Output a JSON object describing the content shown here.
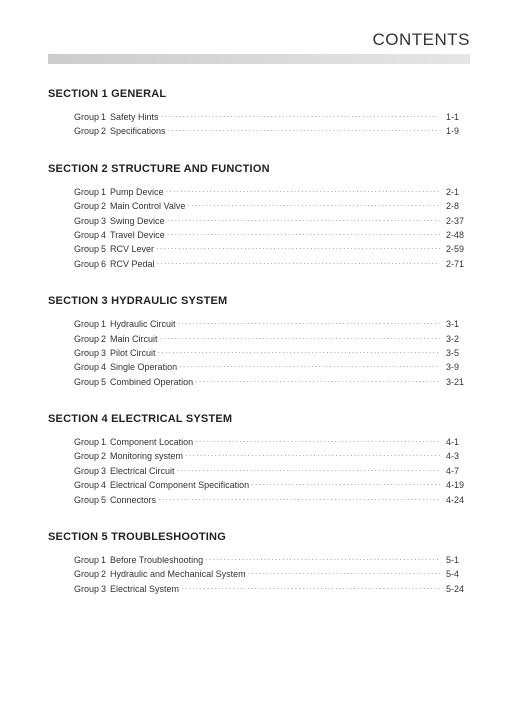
{
  "header": {
    "title": "CONTENTS"
  },
  "sections": [
    {
      "title": "SECTION 1  GENERAL",
      "groups": [
        {
          "label": "Group",
          "num": "1",
          "topic": "Safety Hints",
          "page": "1-1"
        },
        {
          "label": "Group",
          "num": "2",
          "topic": "Specifications",
          "page": "1-9"
        }
      ]
    },
    {
      "title": "SECTION 2  STRUCTURE AND FUNCTION",
      "groups": [
        {
          "label": "Group",
          "num": "1",
          "topic": "Pump Device",
          "page": "2-1"
        },
        {
          "label": "Group",
          "num": "2",
          "topic": "Main Control Valve",
          "page": "2-8"
        },
        {
          "label": "Group",
          "num": "3",
          "topic": "Swing Device",
          "page": "2-37"
        },
        {
          "label": "Group",
          "num": "4",
          "topic": "Travel Device",
          "page": "2-48"
        },
        {
          "label": "Group",
          "num": "5",
          "topic": "RCV Lever",
          "page": "2-59"
        },
        {
          "label": "Group",
          "num": "6",
          "topic": "RCV Pedal",
          "page": "2-71"
        }
      ]
    },
    {
      "title": "SECTION 3  HYDRAULIC SYSTEM",
      "groups": [
        {
          "label": "Group",
          "num": "1",
          "topic": "Hydraulic Circuit",
          "page": "3-1"
        },
        {
          "label": "Group",
          "num": "2",
          "topic": "Main Circuit",
          "page": "3-2"
        },
        {
          "label": "Group",
          "num": "3",
          "topic": "Pilot Circuit",
          "page": "3-5"
        },
        {
          "label": "Group",
          "num": "4",
          "topic": "Single Operation",
          "page": "3-9"
        },
        {
          "label": "Group",
          "num": "5",
          "topic": "Combined Operation",
          "page": "3-21"
        }
      ]
    },
    {
      "title": "SECTION 4  ELECTRICAL SYSTEM",
      "groups": [
        {
          "label": "Group",
          "num": "1",
          "topic": "Component Location",
          "page": "4-1"
        },
        {
          "label": "Group",
          "num": "2",
          "topic": "Monitoring system",
          "page": "4-3"
        },
        {
          "label": "Group",
          "num": "3",
          "topic": "Electrical Circuit",
          "page": "4-7"
        },
        {
          "label": "Group",
          "num": "4",
          "topic": "Electrical Component Specification",
          "page": "4-19"
        },
        {
          "label": "Group",
          "num": "5",
          "topic": "Connectors",
          "page": "4-24"
        }
      ]
    },
    {
      "title": "SECTION 5  TROUBLESHOOTING",
      "groups": [
        {
          "label": "Group",
          "num": "1",
          "topic": "Before Troubleshooting",
          "page": "5-1"
        },
        {
          "label": "Group",
          "num": "2",
          "topic": "Hydraulic and Mechanical System",
          "page": "5-4"
        },
        {
          "label": "Group",
          "num": "3",
          "topic": "Electrical System",
          "page": "5-24"
        }
      ]
    }
  ],
  "colors": {
    "text": "#333333",
    "leader": "#888888",
    "bar_from": "#cccccc",
    "bar_to": "#e6e6e6",
    "background": "#ffffff"
  },
  "typography": {
    "header_fontsize_pt": 17,
    "section_title_fontsize_pt": 11,
    "body_fontsize_pt": 9,
    "font_family": "Arial, Helvetica, sans-serif"
  }
}
